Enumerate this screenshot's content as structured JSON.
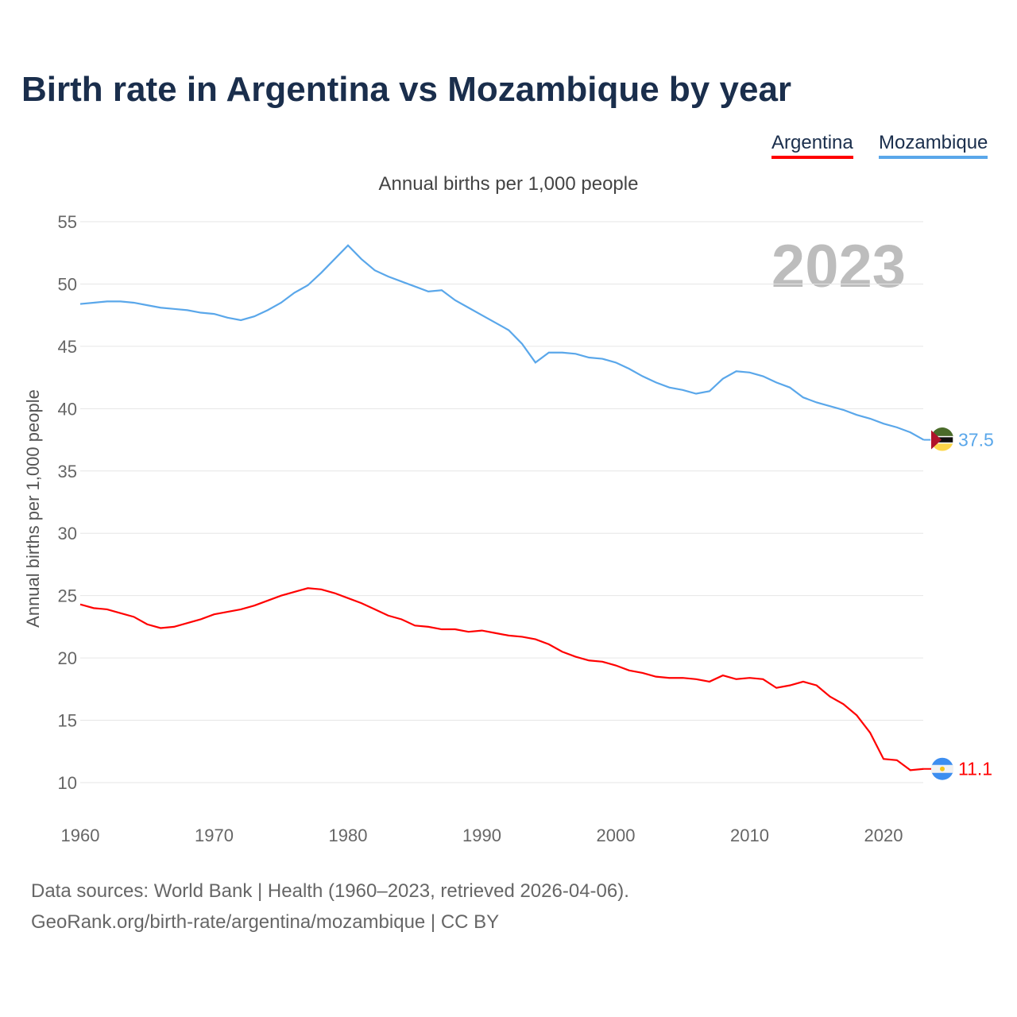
{
  "chart_data": {
    "type": "line",
    "title": "Birth rate in Argentina vs Mozambique by year",
    "subtitle": "Annual births per 1,000 people",
    "ylabel": "Annual births per 1,000 people",
    "xlabel": "",
    "xlim": [
      1960,
      2023
    ],
    "ylim": [
      10,
      55
    ],
    "yticks": [
      10,
      15,
      20,
      25,
      30,
      35,
      40,
      45,
      50,
      55
    ],
    "xticks": [
      1960,
      1970,
      1980,
      1990,
      2000,
      2010,
      2020
    ],
    "grid": true,
    "legend_placement": "top-right",
    "year_label": "2023",
    "x_start": 1960,
    "series": [
      {
        "name": "Argentina",
        "color": "#ff0000",
        "end_label": "11.1",
        "values": [
          24.3,
          24.0,
          23.9,
          23.6,
          23.3,
          22.7,
          22.4,
          22.5,
          22.8,
          23.1,
          23.5,
          23.7,
          23.9,
          24.2,
          24.6,
          25.0,
          25.3,
          25.6,
          25.5,
          25.2,
          24.8,
          24.4,
          23.9,
          23.4,
          23.1,
          22.6,
          22.5,
          22.3,
          22.3,
          22.1,
          22.2,
          22.0,
          21.8,
          21.7,
          21.5,
          21.1,
          20.5,
          20.1,
          19.8,
          19.7,
          19.4,
          19.0,
          18.8,
          18.5,
          18.4,
          18.4,
          18.3,
          18.1,
          18.6,
          18.3,
          18.4,
          18.3,
          17.6,
          17.8,
          18.1,
          17.8,
          16.9,
          16.3,
          15.4,
          14.0,
          11.9,
          11.8,
          11.0,
          11.1
        ]
      },
      {
        "name": "Mozambique",
        "color": "#5aa7ea",
        "end_label": "37.5",
        "values": [
          48.4,
          48.5,
          48.6,
          48.6,
          48.5,
          48.3,
          48.1,
          48.0,
          47.9,
          47.7,
          47.6,
          47.3,
          47.1,
          47.4,
          47.9,
          48.5,
          49.3,
          49.9,
          50.9,
          52.0,
          53.1,
          52.0,
          51.1,
          50.6,
          50.2,
          49.8,
          49.4,
          49.5,
          48.7,
          48.1,
          47.5,
          46.9,
          46.3,
          45.2,
          43.7,
          44.5,
          44.5,
          44.4,
          44.1,
          44.0,
          43.7,
          43.2,
          42.6,
          42.1,
          41.7,
          41.5,
          41.2,
          41.4,
          42.4,
          43.0,
          42.9,
          42.6,
          42.1,
          41.7,
          40.9,
          40.5,
          40.2,
          39.9,
          39.5,
          39.2,
          38.8,
          38.5,
          38.1,
          37.5
        ]
      }
    ]
  },
  "footer": {
    "line1": "Data sources: World Bank | Health (1960–2023, retrieved 2026-04-06).",
    "line2": "GeoRank.org/birth-rate/argentina/mozambique | CC BY"
  }
}
